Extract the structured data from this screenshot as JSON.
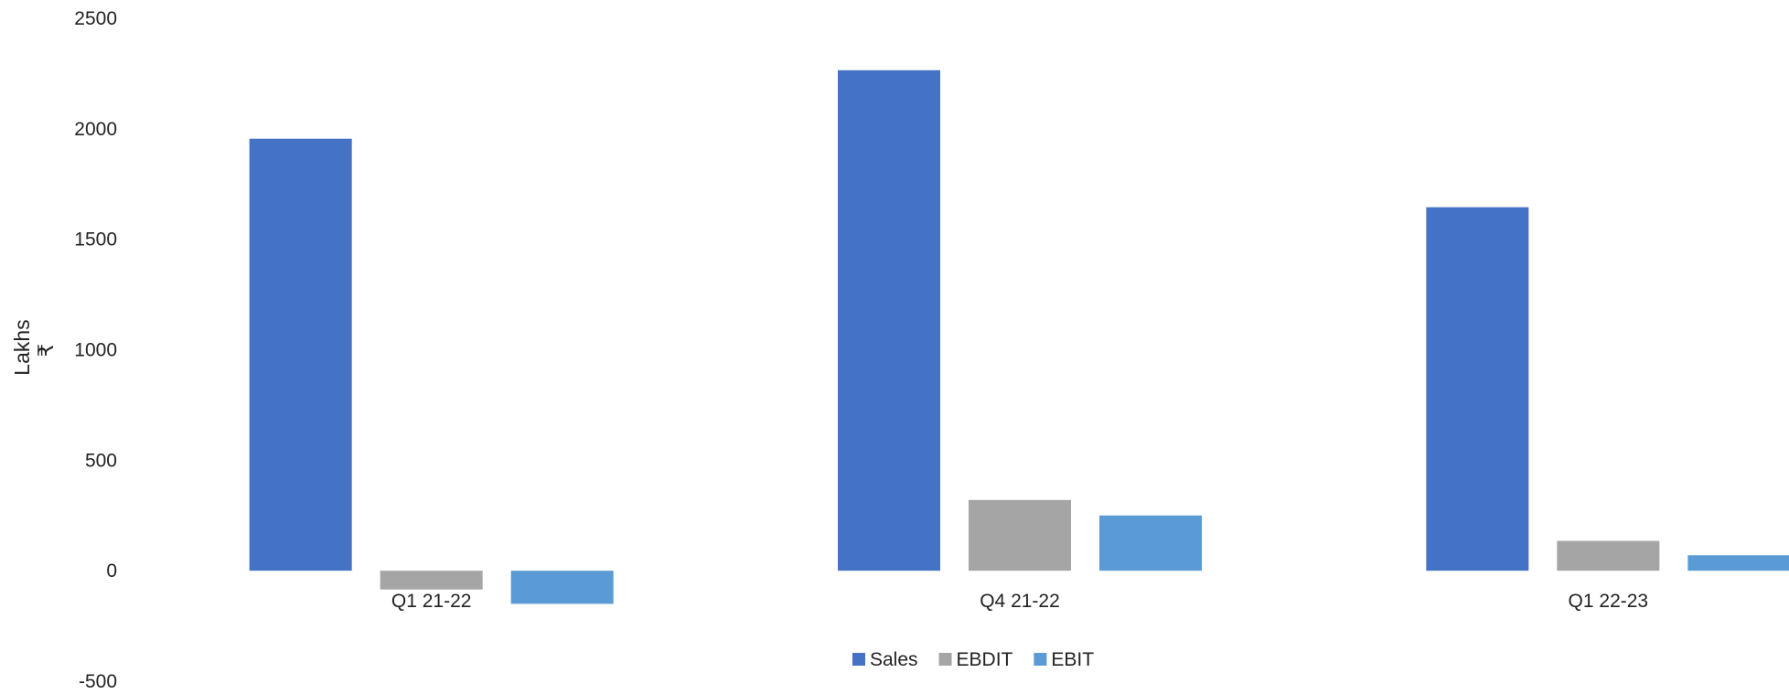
{
  "chart_data": {
    "type": "bar",
    "categories": [
      "Q1 21-22",
      "Q4 21-22",
      "Q1 22-23"
    ],
    "series": [
      {
        "name": "Sales",
        "values": [
          1955,
          2265,
          1645
        ],
        "color": "#4472C4"
      },
      {
        "name": "EBDIT",
        "values": [
          -85,
          320,
          135
        ],
        "color": "#A5A5A5"
      },
      {
        "name": "EBIT",
        "values": [
          -150,
          250,
          70
        ],
        "color": "#5B9BD5"
      }
    ],
    "title": "",
    "xlabel": "",
    "ylabel": "Lakhs",
    "ylabel_unit": "₹",
    "ylim": [
      -500,
      2500
    ],
    "yticks": [
      "-500",
      "0",
      "500",
      "1000",
      "1500",
      "2000",
      "2500"
    ],
    "grid": false,
    "legend_position": "bottom-center"
  }
}
